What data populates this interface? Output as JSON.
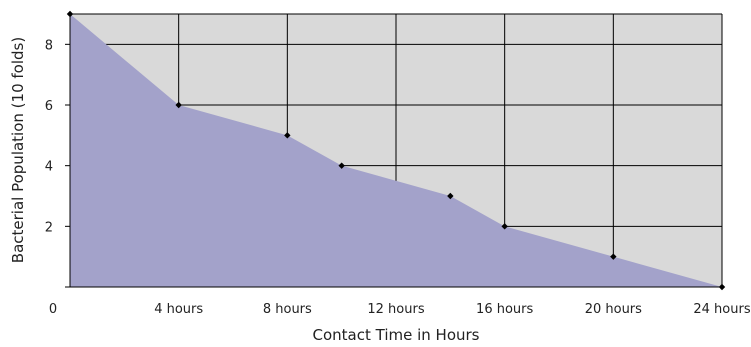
{
  "chart_data": {
    "type": "area",
    "title": "",
    "xlabel": "Contact Time in Hours",
    "ylabel": "Bacterial Population (10 folds)",
    "xlim": [
      0,
      24
    ],
    "ylim": [
      0,
      9
    ],
    "x_ticks": [
      {
        "value": 0,
        "label": "0"
      },
      {
        "value": 4,
        "label": "4 hours"
      },
      {
        "value": 8,
        "label": "8 hours"
      },
      {
        "value": 12,
        "label": "12 hours"
      },
      {
        "value": 16,
        "label": "16 hours"
      },
      {
        "value": 20,
        "label": "20 hours"
      },
      {
        "value": 24,
        "label": "24 hours"
      }
    ],
    "y_ticks": [
      {
        "value": 2,
        "label": "2"
      },
      {
        "value": 4,
        "label": "4"
      },
      {
        "value": 6,
        "label": "6"
      },
      {
        "value": 8,
        "label": "8"
      }
    ],
    "grid": true,
    "series": [
      {
        "x": [
          0,
          4,
          8,
          10,
          14,
          16,
          20,
          24
        ],
        "y": [
          9,
          6,
          5,
          4,
          3,
          2,
          1,
          0
        ]
      }
    ],
    "colors": {
      "fill": "#a3a2ca",
      "plot_background": "#d9d9d9",
      "grid": "#000000",
      "marker": "#000000"
    }
  }
}
